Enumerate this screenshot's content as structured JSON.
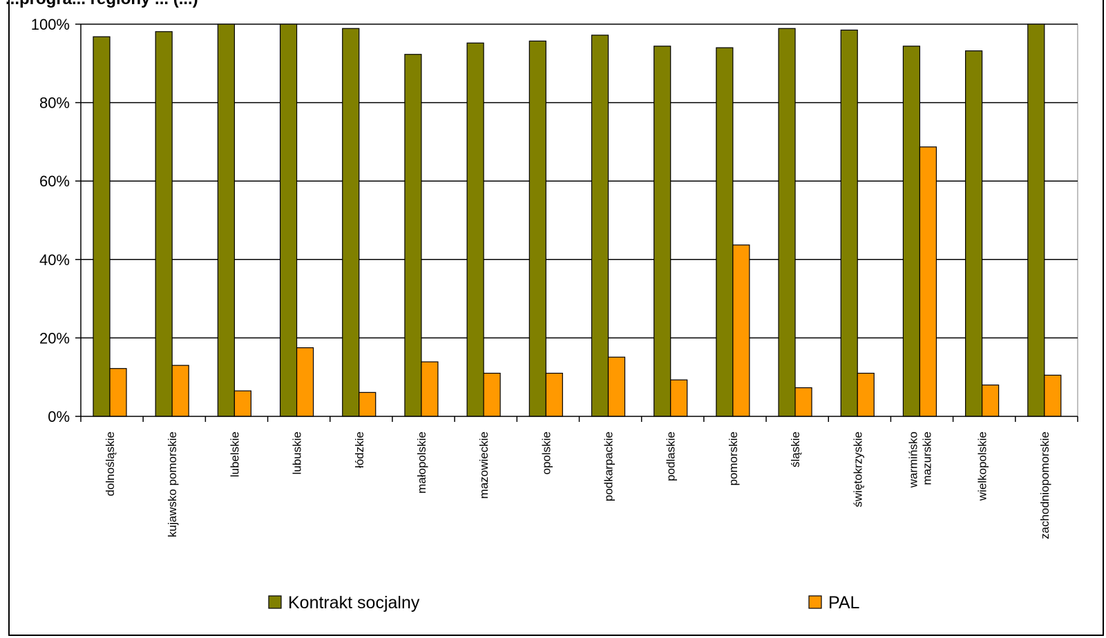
{
  "chart_data": {
    "type": "bar",
    "title": "...progra... regiony ... (...)",
    "categories": [
      [
        "dolnośląskie"
      ],
      [
        "kujawsko pomorskie"
      ],
      [
        "lubelskie"
      ],
      [
        "lubuskie"
      ],
      [
        "łódzkie"
      ],
      [
        "małopolskie"
      ],
      [
        "mazowieckie"
      ],
      [
        "opolskie"
      ],
      [
        "podkarpackie"
      ],
      [
        "podlaskie"
      ],
      [
        "pomorskie"
      ],
      [
        "śląskie"
      ],
      [
        "świętokrzyskie"
      ],
      [
        "warmińsko",
        "mazurskie"
      ],
      [
        "wielkopolskie"
      ],
      [
        "zachodniopomorskie"
      ]
    ],
    "series": [
      {
        "name": "Kontrakt socjalny",
        "color": "#808000",
        "values": [
          96.8,
          98.1,
          100,
          100,
          98.9,
          92.3,
          95.2,
          95.7,
          97.2,
          94.4,
          94.0,
          98.9,
          98.5,
          94.4,
          93.2,
          100
        ]
      },
      {
        "name": "PAL",
        "color": "#ff9900",
        "values": [
          12.2,
          13.0,
          6.5,
          17.5,
          6.1,
          13.9,
          11.0,
          11.0,
          15.1,
          9.3,
          43.7,
          7.3,
          11.0,
          68.7,
          8.0,
          10.5
        ]
      }
    ],
    "ylim": [
      0,
      100
    ],
    "yticks": [
      "0%",
      "20%",
      "40%",
      "60%",
      "80%",
      "100%"
    ],
    "grid": true,
    "legend": "bottom"
  }
}
